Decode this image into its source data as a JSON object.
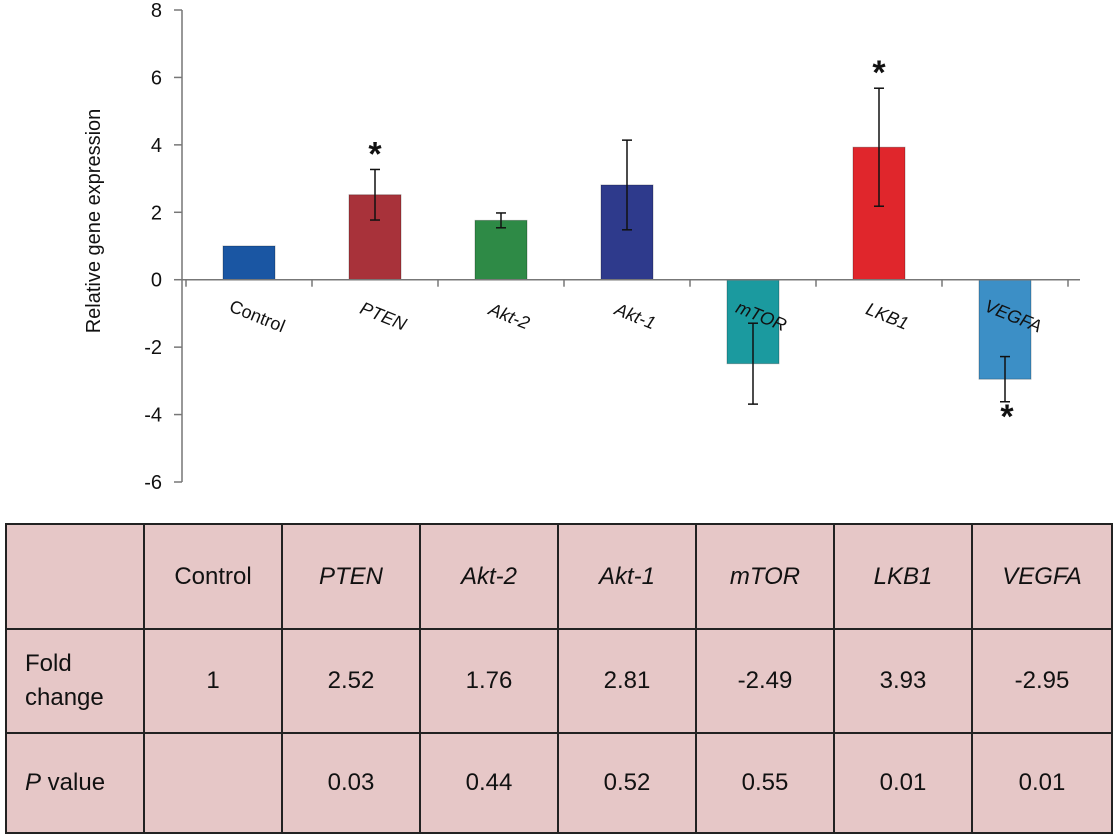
{
  "chart_data": {
    "type": "bar",
    "ylabel": "Relative gene expression",
    "ylim": [
      -6,
      8
    ],
    "yticks": [
      8,
      6,
      4,
      2,
      0,
      -2,
      -4,
      -6
    ],
    "categories": [
      "Control",
      "PTEN",
      "Akt-2",
      "Akt-1",
      "mTOR",
      "LKB1",
      "VEGFA"
    ],
    "values": [
      1,
      2.52,
      1.76,
      2.81,
      -2.49,
      3.93,
      -2.95
    ],
    "error": [
      0,
      0.75,
      0.22,
      1.33,
      1.2,
      1.75,
      0.67
    ],
    "significant": [
      false,
      true,
      false,
      false,
      false,
      true,
      true
    ],
    "colors": [
      "#1a56a3",
      "#a8323a",
      "#2e8a46",
      "#2e3a8c",
      "#1b9a9f",
      "#e0262c",
      "#3c8fc6"
    ],
    "grid": false,
    "legend": "none",
    "star_symbol": "*"
  },
  "table": {
    "header": [
      "",
      "Control",
      "PTEN",
      "Akt-2",
      "Akt-1",
      "mTOR",
      "LKB1",
      "VEGFA"
    ],
    "fold_label_line1": "Fold",
    "fold_label_line2": "change",
    "fold": [
      "1",
      "2.52",
      "1.76",
      "2.81",
      "-2.49",
      "3.93",
      "-2.95"
    ],
    "pvalue_label_p": "P",
    "pvalue_label_rest": " value",
    "pvalue": [
      "",
      "0.03",
      "0.44",
      "0.52",
      "0.55",
      "0.01",
      "0.01"
    ]
  }
}
